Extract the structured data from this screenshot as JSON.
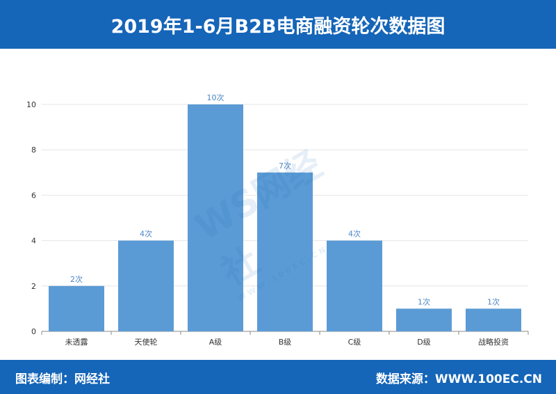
{
  "header": {
    "title": "2019年1-6月B2B电商融资轮次数据图"
  },
  "footer": {
    "left": "图表编制：网经社",
    "right": "数据来源：WWW.100EC.CN"
  },
  "watermark": {
    "main": "WS网经社",
    "sub": "WWW.100EC.CN"
  },
  "colors": {
    "bar": "#5b9bd5",
    "label": "#4a86c5",
    "header": "#1565b8",
    "grid": "#e6e6e6",
    "axis": "#8a8a8a"
  },
  "chart_data": {
    "type": "bar",
    "title": "2019年1-6月B2B电商融资轮次数据图",
    "categories": [
      "未透露",
      "天使轮",
      "A级",
      "B级",
      "C级",
      "D级",
      "战略投资"
    ],
    "values": [
      2,
      4,
      10,
      7,
      4,
      1,
      1
    ],
    "data_labels": [
      "2次",
      "4次",
      "10次",
      "7次",
      "4次",
      "1次",
      "1次"
    ],
    "ylim": [
      0,
      10
    ],
    "yticks": [
      0,
      2,
      4,
      6,
      8,
      10
    ],
    "grid": true,
    "legend": "none"
  }
}
